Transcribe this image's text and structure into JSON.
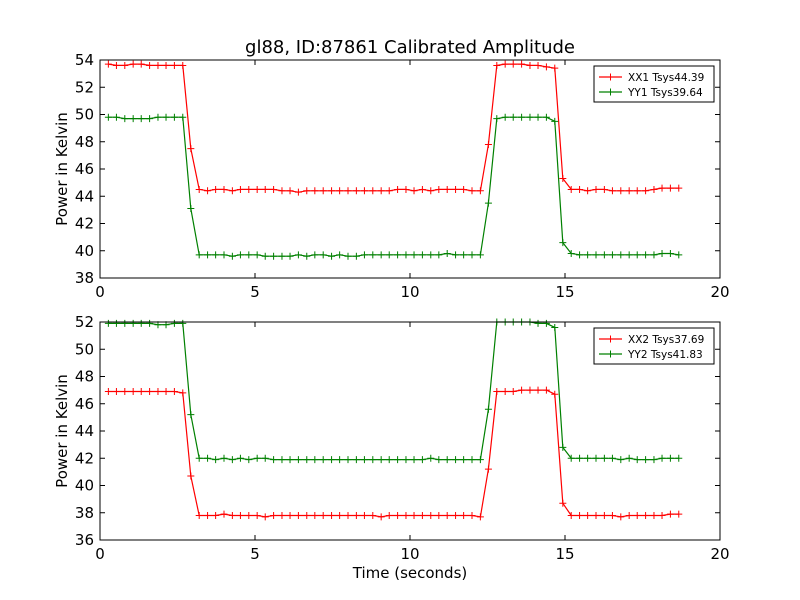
{
  "title": "gl88, ID:87861 Calibrated Amplitude",
  "colors": {
    "red": "#ff0000",
    "green": "#008000"
  },
  "chart_data": [
    {
      "type": "line",
      "xlabel": "",
      "ylabel": "Power in Kelvin",
      "xlim": [
        0,
        20
      ],
      "ylim": [
        38,
        54
      ],
      "xticks": [
        0,
        5,
        10,
        15,
        20
      ],
      "yticks": [
        38,
        40,
        42,
        44,
        46,
        48,
        50,
        52,
        54
      ],
      "grid": false,
      "legend_position": "top-right",
      "x": [
        0.27,
        0.53,
        0.8,
        1.07,
        1.33,
        1.6,
        1.87,
        2.13,
        2.4,
        2.67,
        2.93,
        3.2,
        3.47,
        3.73,
        4.0,
        4.27,
        4.53,
        4.8,
        5.07,
        5.33,
        5.6,
        5.87,
        6.13,
        6.4,
        6.67,
        6.93,
        7.2,
        7.47,
        7.73,
        8.0,
        8.27,
        8.53,
        8.8,
        9.07,
        9.33,
        9.6,
        9.87,
        10.13,
        10.4,
        10.67,
        10.93,
        11.2,
        11.47,
        11.73,
        12.0,
        12.27,
        12.53,
        12.8,
        13.07,
        13.33,
        13.6,
        13.87,
        14.13,
        14.4,
        14.67,
        14.93,
        15.2,
        15.47,
        15.73,
        16.0,
        16.27,
        16.53,
        16.8,
        17.07,
        17.33,
        17.6,
        17.87,
        18.13,
        18.4,
        18.67
      ],
      "series": [
        {
          "name": "XX1 Tsys44.39",
          "color": "#ff0000",
          "values": [
            53.7,
            53.6,
            53.6,
            53.7,
            53.7,
            53.6,
            53.6,
            53.6,
            53.6,
            53.6,
            47.5,
            44.5,
            44.4,
            44.5,
            44.5,
            44.4,
            44.5,
            44.5,
            44.5,
            44.5,
            44.5,
            44.4,
            44.4,
            44.3,
            44.4,
            44.4,
            44.4,
            44.4,
            44.4,
            44.4,
            44.4,
            44.4,
            44.4,
            44.4,
            44.4,
            44.5,
            44.5,
            44.4,
            44.5,
            44.4,
            44.5,
            44.5,
            44.5,
            44.5,
            44.4,
            44.4,
            47.8,
            53.6,
            53.7,
            53.7,
            53.7,
            53.6,
            53.6,
            53.5,
            53.4,
            45.3,
            44.5,
            44.5,
            44.4,
            44.5,
            44.5,
            44.4,
            44.4,
            44.4,
            44.4,
            44.4,
            44.5,
            44.6,
            44.6,
            44.6
          ]
        },
        {
          "name": "YY1 Tsys39.64",
          "color": "#008000",
          "values": [
            49.8,
            49.8,
            49.7,
            49.7,
            49.7,
            49.7,
            49.8,
            49.8,
            49.8,
            49.8,
            43.1,
            39.7,
            39.7,
            39.7,
            39.7,
            39.6,
            39.7,
            39.7,
            39.7,
            39.6,
            39.6,
            39.6,
            39.6,
            39.7,
            39.6,
            39.7,
            39.7,
            39.6,
            39.7,
            39.6,
            39.6,
            39.7,
            39.7,
            39.7,
            39.7,
            39.7,
            39.7,
            39.7,
            39.7,
            39.7,
            39.7,
            39.8,
            39.7,
            39.7,
            39.7,
            39.7,
            43.5,
            49.7,
            49.8,
            49.8,
            49.8,
            49.8,
            49.8,
            49.8,
            49.5,
            40.6,
            39.8,
            39.7,
            39.7,
            39.7,
            39.7,
            39.7,
            39.7,
            39.7,
            39.7,
            39.7,
            39.7,
            39.8,
            39.8,
            39.7
          ]
        }
      ]
    },
    {
      "type": "line",
      "xlabel": "Time (seconds)",
      "ylabel": "Power in Kelvin",
      "xlim": [
        0,
        20
      ],
      "ylim": [
        36,
        52
      ],
      "xticks": [
        0,
        5,
        10,
        15,
        20
      ],
      "yticks": [
        36,
        38,
        40,
        42,
        44,
        46,
        48,
        50,
        52
      ],
      "grid": false,
      "legend_position": "top-right",
      "x": [
        0.27,
        0.53,
        0.8,
        1.07,
        1.33,
        1.6,
        1.87,
        2.13,
        2.4,
        2.67,
        2.93,
        3.2,
        3.47,
        3.73,
        4.0,
        4.27,
        4.53,
        4.8,
        5.07,
        5.33,
        5.6,
        5.87,
        6.13,
        6.4,
        6.67,
        6.93,
        7.2,
        7.47,
        7.73,
        8.0,
        8.27,
        8.53,
        8.8,
        9.07,
        9.33,
        9.6,
        9.87,
        10.13,
        10.4,
        10.67,
        10.93,
        11.2,
        11.47,
        11.73,
        12.0,
        12.27,
        12.53,
        12.8,
        13.07,
        13.33,
        13.6,
        13.87,
        14.13,
        14.4,
        14.67,
        14.93,
        15.2,
        15.47,
        15.73,
        16.0,
        16.27,
        16.53,
        16.8,
        17.07,
        17.33,
        17.6,
        17.87,
        18.13,
        18.4,
        18.67
      ],
      "series": [
        {
          "name": "XX2 Tsys37.69",
          "color": "#ff0000",
          "values": [
            46.9,
            46.9,
            46.9,
            46.9,
            46.9,
            46.9,
            46.9,
            46.9,
            46.9,
            46.8,
            40.7,
            37.8,
            37.8,
            37.8,
            37.9,
            37.8,
            37.8,
            37.8,
            37.8,
            37.7,
            37.8,
            37.8,
            37.8,
            37.8,
            37.8,
            37.8,
            37.8,
            37.8,
            37.8,
            37.8,
            37.8,
            37.8,
            37.8,
            37.7,
            37.8,
            37.8,
            37.8,
            37.8,
            37.8,
            37.8,
            37.8,
            37.8,
            37.8,
            37.8,
            37.8,
            37.7,
            41.2,
            46.9,
            46.9,
            46.9,
            47.0,
            47.0,
            47.0,
            47.0,
            46.7,
            38.7,
            37.8,
            37.8,
            37.8,
            37.8,
            37.8,
            37.8,
            37.7,
            37.8,
            37.8,
            37.8,
            37.8,
            37.8,
            37.9,
            37.9
          ]
        },
        {
          "name": "YY2 Tsys41.83",
          "color": "#008000",
          "values": [
            51.9,
            51.9,
            51.9,
            51.9,
            51.9,
            51.9,
            51.8,
            51.8,
            51.9,
            51.9,
            45.2,
            42.0,
            42.0,
            41.9,
            42.0,
            41.9,
            42.0,
            41.9,
            42.0,
            42.0,
            41.9,
            41.9,
            41.9,
            41.9,
            41.9,
            41.9,
            41.9,
            41.9,
            41.9,
            41.9,
            41.9,
            41.9,
            41.9,
            41.9,
            41.9,
            41.9,
            41.9,
            41.9,
            41.9,
            42.0,
            41.9,
            41.9,
            41.9,
            41.9,
            41.9,
            41.9,
            45.6,
            52.0,
            52.0,
            52.0,
            52.0,
            52.0,
            51.9,
            51.9,
            51.6,
            42.8,
            42.0,
            42.0,
            42.0,
            42.0,
            42.0,
            42.0,
            41.9,
            42.0,
            41.9,
            41.9,
            41.9,
            42.0,
            42.0,
            42.0
          ]
        }
      ]
    }
  ]
}
